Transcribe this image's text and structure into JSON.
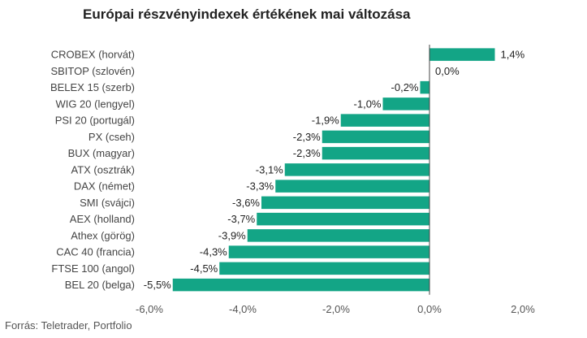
{
  "source": "Forrás: Teletrader, Portfolio",
  "colors": {
    "bar": "#13a586",
    "zero_line": "#444444"
  },
  "chart_data": {
    "type": "bar",
    "orientation": "horizontal",
    "title": "Európai részvényindexek értékének mai változása",
    "categories": [
      "CROBEX (horvát)",
      "SBITOP (szlovén)",
      "BELEX 15 (szerb)",
      "WIG 20 (lengyel)",
      "PSI 20 (portugál)",
      "PX (cseh)",
      "BUX (magyar)",
      "ATX (osztrák)",
      "DAX (német)",
      "SMI (svájci)",
      "AEX (holland)",
      "Athex (görög)",
      "CAC 40 (francia)",
      "FTSE 100 (angol)",
      "BEL 20 (belga)"
    ],
    "values": [
      1.4,
      0.0,
      -0.2,
      -1.0,
      -1.9,
      -2.3,
      -2.3,
      -3.1,
      -3.3,
      -3.6,
      -3.7,
      -3.9,
      -4.3,
      -4.5,
      -5.5
    ],
    "value_labels": [
      "1,4%",
      "0,0%",
      "-0,2%",
      "-1,0%",
      "-1,9%",
      "-2,3%",
      "-2,3%",
      "-3,1%",
      "-3,3%",
      "-3,6%",
      "-3,7%",
      "-3,9%",
      "-4,3%",
      "-4,5%",
      "-5,5%"
    ],
    "xlim": [
      -6,
      2
    ],
    "x_ticks": [
      -6,
      -4,
      -2,
      0,
      2
    ],
    "x_tick_labels": [
      "-6,0%",
      "-4,0%",
      "-2,0%",
      "0,0%",
      "2,0%"
    ],
    "grid": false,
    "legend": "none"
  }
}
